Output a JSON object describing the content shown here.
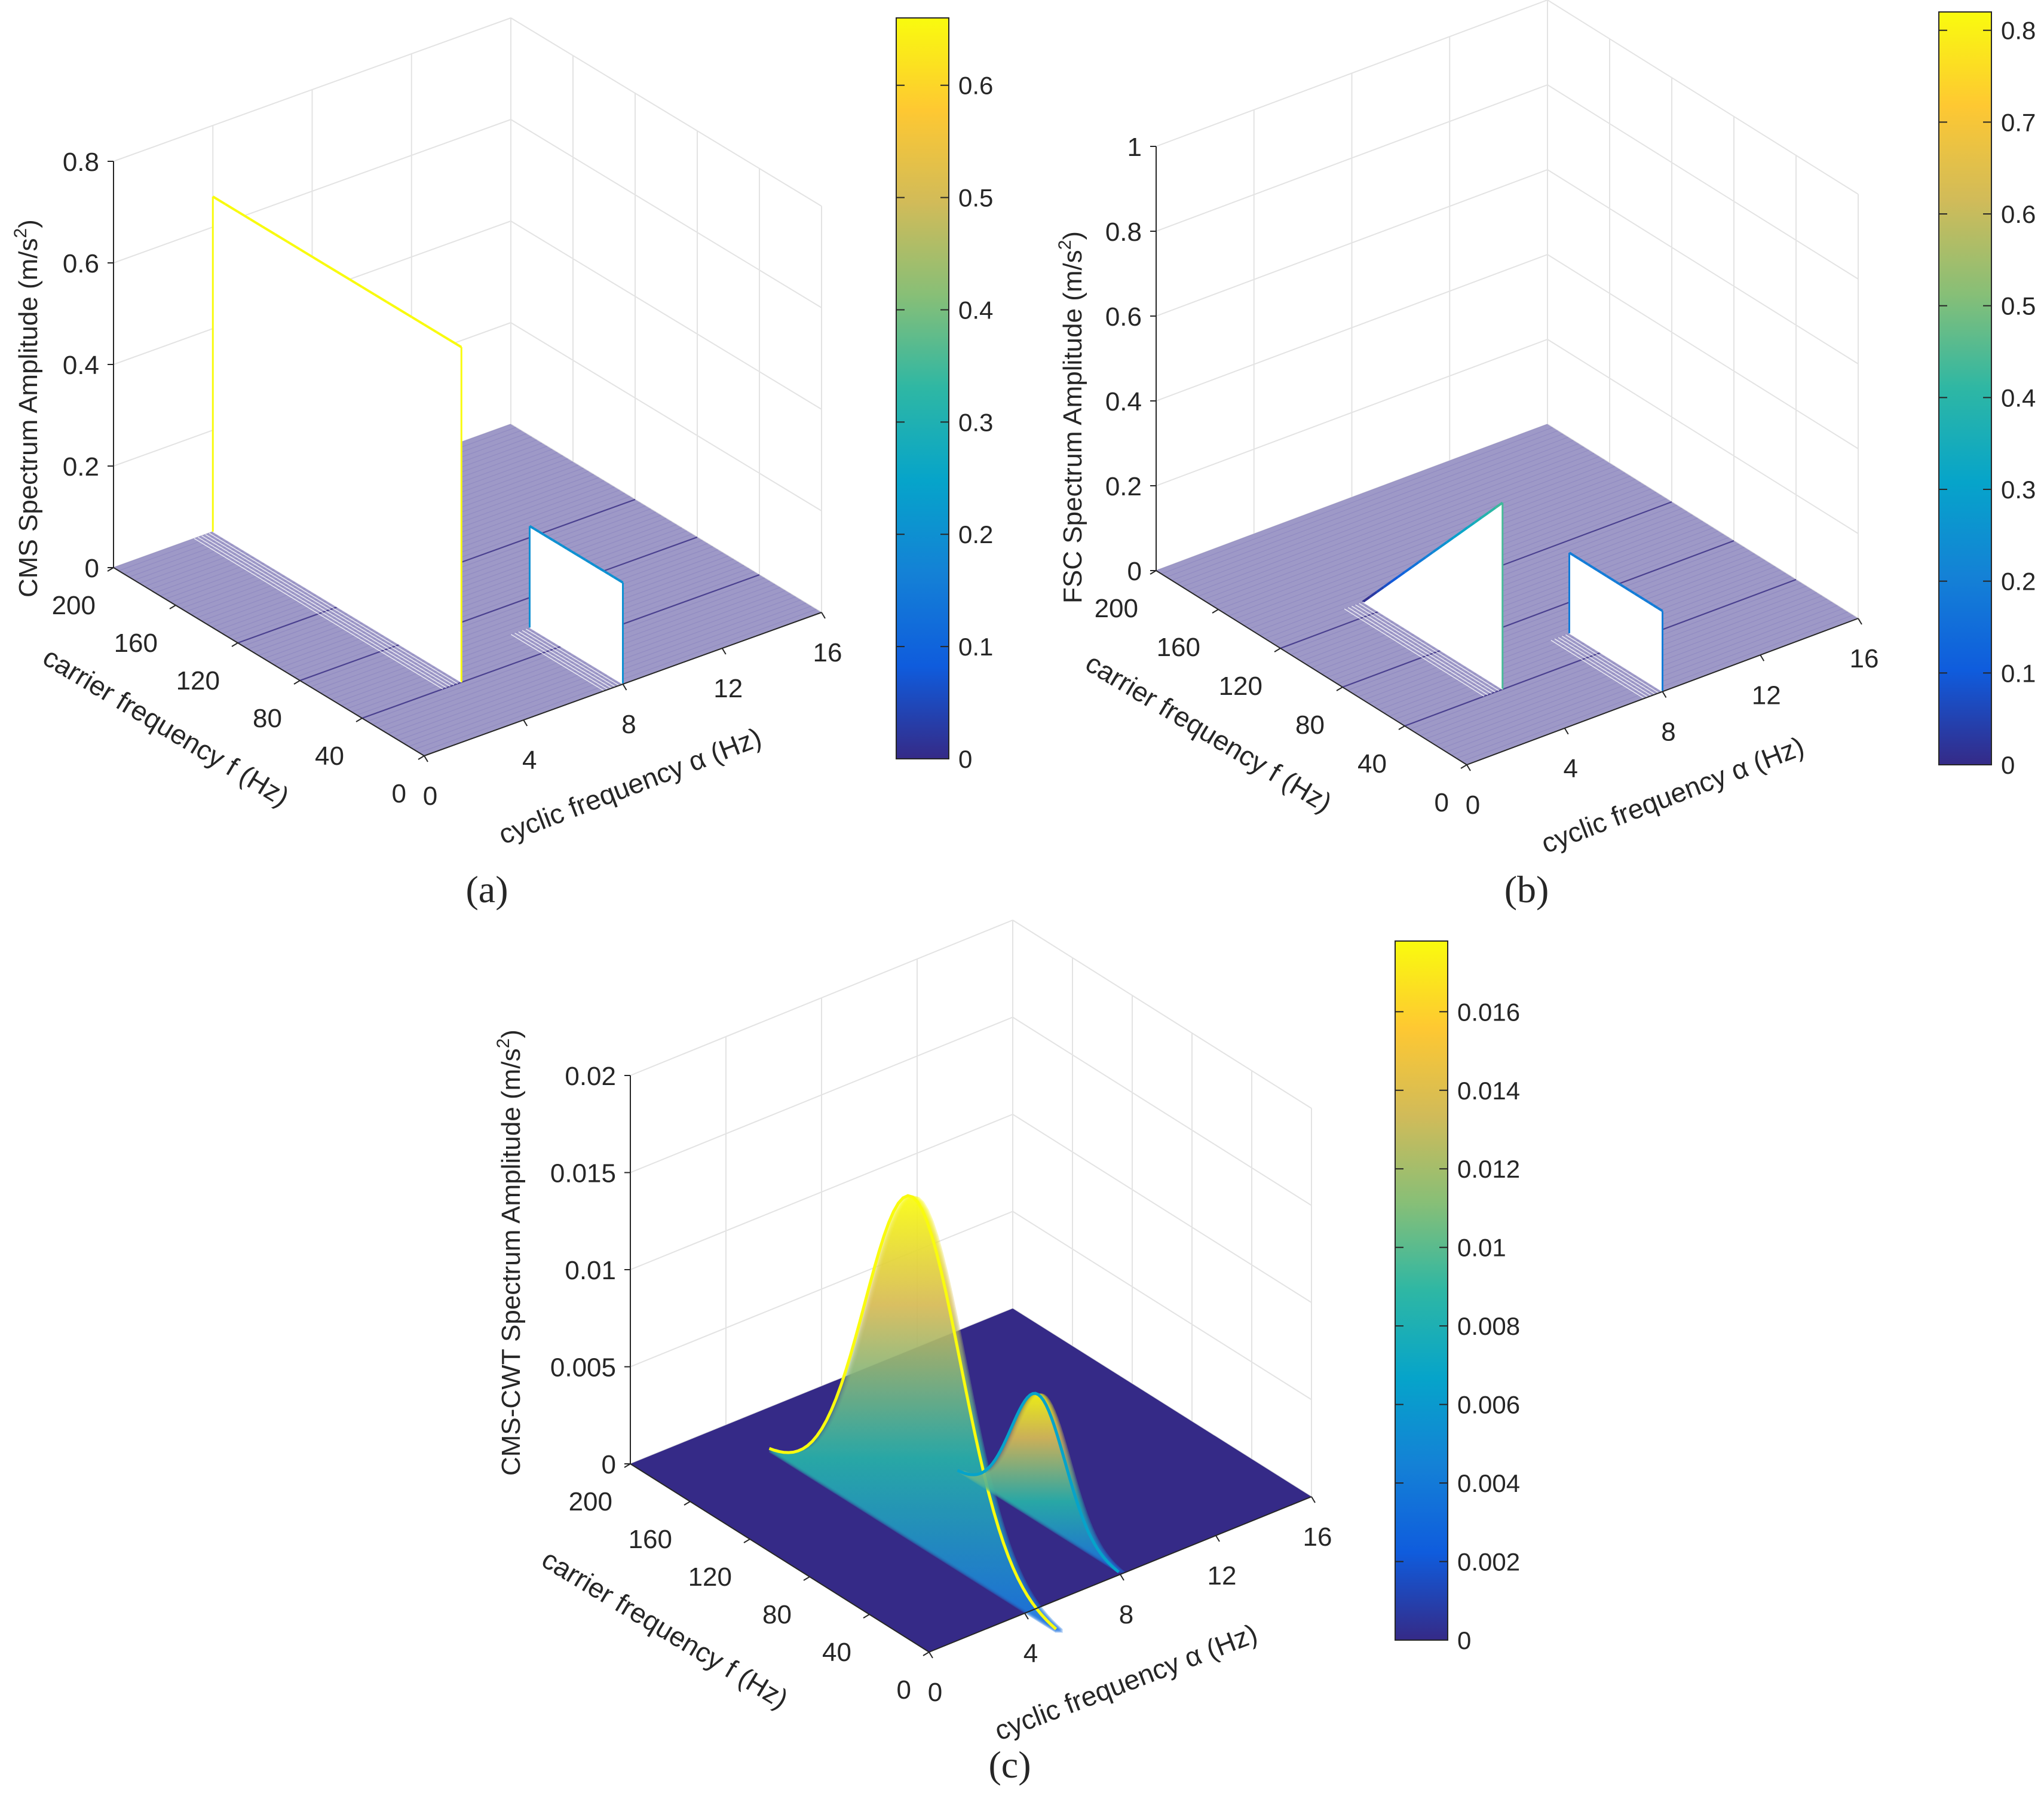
{
  "chart_data": [
    {
      "type": "surface",
      "panel_label": "(a)",
      "zlabel": "CMS Spectrum Amplitude (m/s²)",
      "xlabel": "cyclic frequency α (Hz)",
      "ylabel": "carrier frequency f (Hz)",
      "x_ticks": [
        "0",
        "4",
        "8",
        "12",
        "16"
      ],
      "y_ticks": [
        "0",
        "40",
        "80",
        "120",
        "160",
        "200"
      ],
      "z_ticks": [
        "0",
        "0.2",
        "0.4",
        "0.6",
        "0.8"
      ],
      "xlim": [
        0,
        16
      ],
      "ylim": [
        0,
        200
      ],
      "zlim": [
        0,
        0.8
      ],
      "colorbar_ticks": [
        "0",
        "0.1",
        "0.2",
        "0.3",
        "0.4",
        "0.5",
        "0.6"
      ],
      "colorbar_max": 0.66,
      "peaks": [
        {
          "alpha": 4,
          "f_start": 40,
          "f_end": 200,
          "amplitude_start": 0.66,
          "amplitude_end": 0.66
        },
        {
          "alpha": 8,
          "f_start": 0,
          "f_end": 60,
          "amplitude_start": 0.2,
          "amplitude_end": 0.2
        }
      ]
    },
    {
      "type": "surface",
      "panel_label": "(b)",
      "zlabel": "FSC Spectrum Amplitude (m/s²)",
      "xlabel": "cyclic frequency α (Hz)",
      "ylabel": "carrier frequency f (Hz)",
      "x_ticks": [
        "0",
        "4",
        "8",
        "12",
        "16"
      ],
      "y_ticks": [
        "0",
        "40",
        "80",
        "120",
        "160",
        "200"
      ],
      "z_ticks": [
        "0",
        "0.2",
        "0.4",
        "0.6",
        "0.8",
        "1"
      ],
      "xlim": [
        0,
        16
      ],
      "ylim": [
        0,
        200
      ],
      "zlim": [
        0,
        1
      ],
      "colorbar_ticks": [
        "0",
        "0.1",
        "0.2",
        "0.3",
        "0.4",
        "0.5",
        "0.6",
        "0.7",
        "0.8"
      ],
      "colorbar_max": 0.82,
      "peaks": [
        {
          "alpha": 4,
          "f_start": 40,
          "f_end": 130,
          "amplitude_start": 0.44,
          "amplitude_end": 0.0
        },
        {
          "alpha": 8,
          "f_start": 0,
          "f_end": 60,
          "amplitude_start": 0.19,
          "amplitude_end": 0.19
        }
      ]
    },
    {
      "type": "surface",
      "panel_label": "(c)",
      "zlabel": "CMS-CWT Spectrum Amplitude (m/s²)",
      "xlabel": "cyclic frequency α (Hz)",
      "ylabel": "carrier frequency f (Hz)",
      "x_ticks": [
        "0",
        "4",
        "8",
        "12",
        "16"
      ],
      "y_ticks": [
        "0",
        "40",
        "80",
        "120",
        "160",
        "200"
      ],
      "z_ticks": [
        "0",
        "0.005",
        "0.01",
        "0.015",
        "0.02"
      ],
      "xlim": [
        0,
        16
      ],
      "ylim": [
        0,
        200
      ],
      "zlim": [
        0,
        0.02
      ],
      "colorbar_ticks": [
        "0",
        "0.002",
        "0.004",
        "0.006",
        "0.008",
        "0.01",
        "0.012",
        "0.014",
        "0.016"
      ],
      "colorbar_max": 0.0178,
      "peaks": [
        {
          "alpha": 4,
          "f_center": 75,
          "f_width": 32,
          "amplitude": 0.0178
        },
        {
          "alpha": 8,
          "f_center": 55,
          "f_width": 18,
          "amplitude": 0.0066
        }
      ]
    }
  ]
}
